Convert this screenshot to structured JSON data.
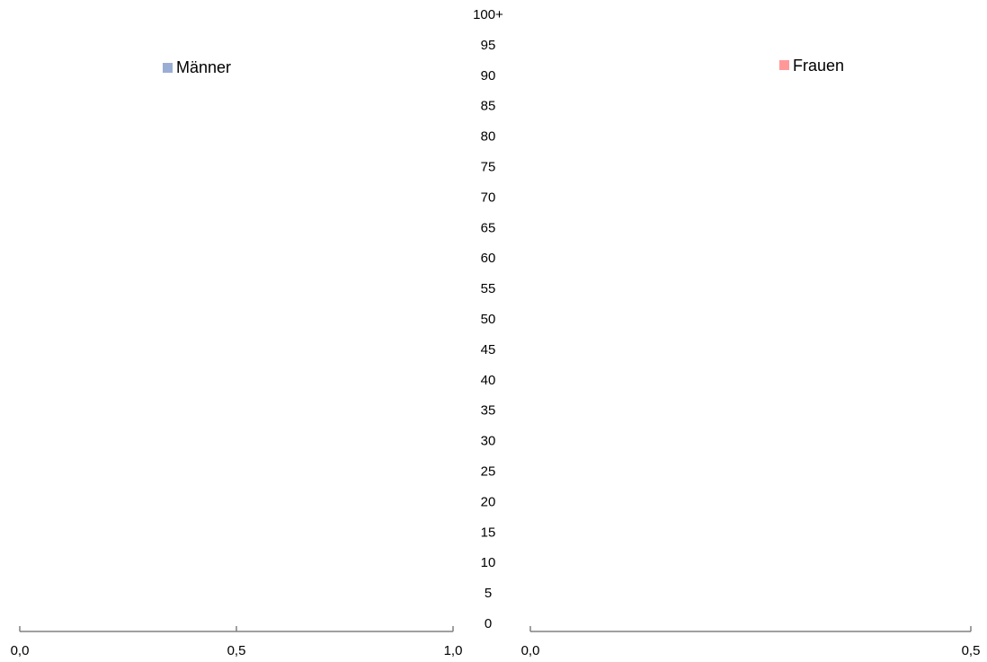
{
  "chart_data": {
    "type": "bar",
    "title": "",
    "ylabel": "",
    "age_labels": [
      "100+",
      "95",
      "90",
      "85",
      "80",
      "75",
      "70",
      "65",
      "60",
      "55",
      "50",
      "45",
      "40",
      "35",
      "30",
      "25",
      "20",
      "15",
      "10",
      "5",
      "0"
    ],
    "left_panel": {
      "series_name": "Männer",
      "color": "#9aadd5",
      "xlim": [
        0.0,
        1.0
      ],
      "ticks": [
        "0,0",
        "0,5",
        "1,0"
      ],
      "values": []
    },
    "right_panel": {
      "series_name": "Frauen",
      "color": "#ff9999",
      "xlim": [
        0.0,
        0.5
      ],
      "ticks": [
        "0,0",
        "0,5"
      ],
      "values": []
    },
    "axis_color": "#808080",
    "grid": false,
    "legend_placement": "top"
  }
}
